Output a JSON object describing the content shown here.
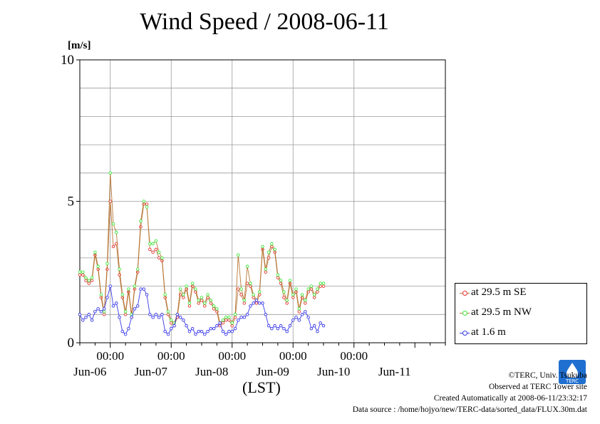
{
  "title": "Wind Speed / 2008-06-11",
  "unit_label": "[m/s]",
  "x_axis_label": "(LST)",
  "credits": {
    "copyright": "©TERC, Univ. Tsukuba",
    "observed": "Observed at TERC Tower site",
    "created": "Created Automatically at 2008-06-11/23:32:17",
    "source": "Data source : /home/hojyo/new/TERC-data/sorted_data/FLUX.30m.dat"
  },
  "logo_text": "TERC",
  "colors": {
    "se": "#e83030",
    "nw": "#38e838",
    "low": "#3838e8",
    "link": "#b87838"
  },
  "chart_data": {
    "type": "line",
    "title": "Wind Speed / 2008-06-11",
    "ylabel": "[m/s]",
    "xlabel": "(LST)",
    "ylim": [
      0,
      10
    ],
    "yticks": [
      0,
      5,
      10
    ],
    "xlim_days": [
      5.5,
      11.5
    ],
    "time_tick_label": "00:00",
    "day_labels": [
      {
        "t": 5.667,
        "label": "Jun-06"
      },
      {
        "t": 6.667,
        "label": "Jun-07"
      },
      {
        "t": 7.667,
        "label": "Jun-08"
      },
      {
        "t": 8.667,
        "label": "Jun-09"
      },
      {
        "t": 9.667,
        "label": "Jun-10"
      },
      {
        "t": 10.667,
        "label": "Jun-11"
      }
    ],
    "midnights": [
      6,
      7,
      8,
      9,
      10
    ],
    "grid": true,
    "legend_position": "right",
    "series": [
      {
        "name": "at 29.5 m SE",
        "color": "#e83030",
        "points": [
          [
            5.5,
            2.4
          ],
          [
            5.55,
            2.4
          ],
          [
            5.6,
            2.2
          ],
          [
            5.65,
            2.1
          ],
          [
            5.7,
            2.2
          ],
          [
            5.75,
            3.1
          ],
          [
            5.8,
            2.6
          ],
          [
            5.85,
            1.6
          ],
          [
            5.9,
            1.0
          ],
          [
            5.95,
            2.6
          ],
          [
            6.0,
            5.0
          ],
          [
            6.05,
            3.4
          ],
          [
            6.1,
            3.5
          ],
          [
            6.15,
            2.4
          ],
          [
            6.2,
            1.6
          ],
          [
            6.25,
            1.0
          ],
          [
            6.3,
            1.8
          ],
          [
            6.35,
            0.9
          ],
          [
            6.4,
            1.9
          ],
          [
            6.45,
            2.5
          ],
          [
            6.5,
            4.1
          ],
          [
            6.55,
            4.9
          ],
          [
            6.6,
            4.9
          ],
          [
            6.65,
            3.3
          ],
          [
            6.7,
            3.2
          ],
          [
            6.75,
            3.3
          ],
          [
            6.8,
            3.0
          ],
          [
            6.85,
            2.9
          ],
          [
            6.9,
            1.6
          ],
          [
            6.95,
            1.0
          ],
          [
            7.0,
            0.7
          ],
          [
            7.05,
            0.6
          ],
          [
            7.1,
            0.9
          ],
          [
            7.15,
            1.7
          ],
          [
            7.2,
            1.6
          ],
          [
            7.25,
            1.9
          ],
          [
            7.3,
            1.3
          ],
          [
            7.35,
            2.0
          ],
          [
            7.4,
            1.8
          ],
          [
            7.45,
            1.4
          ],
          [
            7.5,
            1.5
          ],
          [
            7.55,
            1.3
          ],
          [
            7.6,
            1.6
          ],
          [
            7.65,
            1.4
          ],
          [
            7.7,
            1.2
          ],
          [
            7.75,
            1.1
          ],
          [
            7.8,
            0.6
          ],
          [
            7.85,
            0.7
          ],
          [
            7.9,
            0.8
          ],
          [
            7.95,
            0.8
          ],
          [
            8.0,
            0.6
          ],
          [
            8.05,
            0.9
          ],
          [
            8.1,
            1.9
          ],
          [
            8.15,
            1.7
          ],
          [
            8.2,
            1.4
          ],
          [
            8.25,
            2.1
          ],
          [
            8.3,
            2.0
          ],
          [
            8.35,
            1.6
          ],
          [
            8.4,
            1.4
          ],
          [
            8.45,
            1.7
          ],
          [
            8.5,
            3.3
          ],
          [
            8.55,
            2.5
          ],
          [
            8.6,
            3.0
          ],
          [
            8.65,
            3.4
          ],
          [
            8.7,
            3.2
          ],
          [
            8.75,
            2.3
          ],
          [
            8.8,
            2.1
          ],
          [
            8.85,
            1.6
          ],
          [
            8.9,
            1.4
          ],
          [
            8.95,
            2.1
          ],
          [
            9.0,
            1.6
          ],
          [
            9.05,
            1.8
          ],
          [
            9.1,
            1.1
          ],
          [
            9.15,
            1.6
          ],
          [
            9.2,
            1.4
          ],
          [
            9.25,
            1.8
          ],
          [
            9.3,
            1.9
          ],
          [
            9.35,
            1.6
          ],
          [
            9.4,
            1.8
          ],
          [
            9.45,
            2.0
          ],
          [
            9.5,
            2.0
          ]
        ]
      },
      {
        "name": "at 29.5 m NW",
        "color": "#38e838",
        "points": [
          [
            5.5,
            2.5
          ],
          [
            5.55,
            2.5
          ],
          [
            5.6,
            2.3
          ],
          [
            5.65,
            2.2
          ],
          [
            5.7,
            2.3
          ],
          [
            5.75,
            3.2
          ],
          [
            5.8,
            2.7
          ],
          [
            5.85,
            1.7
          ],
          [
            5.9,
            1.1
          ],
          [
            5.95,
            2.8
          ],
          [
            6.0,
            6.0
          ],
          [
            6.05,
            4.2
          ],
          [
            6.1,
            3.9
          ],
          [
            6.15,
            2.6
          ],
          [
            6.2,
            1.7
          ],
          [
            6.25,
            1.1
          ],
          [
            6.3,
            1.9
          ],
          [
            6.35,
            1.0
          ],
          [
            6.4,
            2.0
          ],
          [
            6.45,
            2.6
          ],
          [
            6.5,
            4.3
          ],
          [
            6.55,
            5.0
          ],
          [
            6.6,
            4.8
          ],
          [
            6.65,
            3.5
          ],
          [
            6.7,
            3.5
          ],
          [
            6.75,
            3.6
          ],
          [
            6.8,
            3.2
          ],
          [
            6.85,
            3.0
          ],
          [
            6.9,
            1.7
          ],
          [
            6.95,
            1.1
          ],
          [
            7.0,
            0.8
          ],
          [
            7.05,
            0.7
          ],
          [
            7.1,
            1.0
          ],
          [
            7.15,
            1.9
          ],
          [
            7.2,
            1.7
          ],
          [
            7.25,
            2.0
          ],
          [
            7.3,
            1.4
          ],
          [
            7.35,
            2.1
          ],
          [
            7.4,
            1.9
          ],
          [
            7.45,
            1.5
          ],
          [
            7.5,
            1.6
          ],
          [
            7.55,
            1.4
          ],
          [
            7.6,
            1.7
          ],
          [
            7.65,
            1.5
          ],
          [
            7.7,
            1.3
          ],
          [
            7.75,
            1.2
          ],
          [
            7.8,
            0.7
          ],
          [
            7.85,
            0.8
          ],
          [
            7.9,
            0.9
          ],
          [
            7.95,
            0.9
          ],
          [
            8.0,
            0.7
          ],
          [
            8.05,
            1.0
          ],
          [
            8.1,
            3.1
          ],
          [
            8.15,
            1.9
          ],
          [
            8.2,
            1.5
          ],
          [
            8.25,
            2.7
          ],
          [
            8.3,
            2.1
          ],
          [
            8.35,
            1.7
          ],
          [
            8.4,
            1.5
          ],
          [
            8.45,
            1.8
          ],
          [
            8.5,
            3.4
          ],
          [
            8.55,
            2.6
          ],
          [
            8.6,
            3.2
          ],
          [
            8.65,
            3.5
          ],
          [
            8.7,
            3.3
          ],
          [
            8.75,
            2.4
          ],
          [
            8.8,
            2.2
          ],
          [
            8.85,
            1.8
          ],
          [
            8.9,
            1.5
          ],
          [
            8.95,
            2.2
          ],
          [
            9.0,
            1.7
          ],
          [
            9.05,
            1.9
          ],
          [
            9.1,
            1.2
          ],
          [
            9.15,
            1.7
          ],
          [
            9.2,
            1.5
          ],
          [
            9.25,
            1.9
          ],
          [
            9.3,
            2.0
          ],
          [
            9.35,
            1.7
          ],
          [
            9.4,
            1.9
          ],
          [
            9.45,
            2.1
          ],
          [
            9.5,
            2.1
          ]
        ]
      },
      {
        "name": "at 1.6 m",
        "color": "#3838e8",
        "points": [
          [
            5.5,
            1.0
          ],
          [
            5.55,
            0.8
          ],
          [
            5.6,
            0.9
          ],
          [
            5.65,
            1.0
          ],
          [
            5.7,
            0.8
          ],
          [
            5.75,
            1.1
          ],
          [
            5.8,
            1.2
          ],
          [
            5.85,
            1.1
          ],
          [
            5.9,
            1.2
          ],
          [
            5.95,
            1.6
          ],
          [
            6.0,
            2.0
          ],
          [
            6.05,
            1.3
          ],
          [
            6.1,
            1.4
          ],
          [
            6.15,
            0.9
          ],
          [
            6.2,
            0.4
          ],
          [
            6.25,
            0.3
          ],
          [
            6.3,
            0.5
          ],
          [
            6.35,
            0.9
          ],
          [
            6.4,
            1.2
          ],
          [
            6.45,
            1.3
          ],
          [
            6.5,
            1.9
          ],
          [
            6.55,
            1.9
          ],
          [
            6.6,
            1.7
          ],
          [
            6.65,
            1.0
          ],
          [
            6.7,
            0.9
          ],
          [
            6.75,
            1.0
          ],
          [
            6.8,
            0.9
          ],
          [
            6.85,
            1.0
          ],
          [
            6.9,
            0.4
          ],
          [
            6.95,
            0.3
          ],
          [
            7.0,
            0.5
          ],
          [
            7.05,
            0.6
          ],
          [
            7.1,
            1.0
          ],
          [
            7.15,
            0.9
          ],
          [
            7.2,
            0.8
          ],
          [
            7.25,
            0.6
          ],
          [
            7.3,
            0.4
          ],
          [
            7.35,
            0.5
          ],
          [
            7.4,
            0.3
          ],
          [
            7.45,
            0.4
          ],
          [
            7.5,
            0.4
          ],
          [
            7.55,
            0.3
          ],
          [
            7.6,
            0.4
          ],
          [
            7.65,
            0.5
          ],
          [
            7.7,
            0.5
          ],
          [
            7.75,
            0.6
          ],
          [
            7.8,
            0.7
          ],
          [
            7.85,
            0.4
          ],
          [
            7.9,
            0.3
          ],
          [
            7.95,
            0.4
          ],
          [
            8.0,
            0.4
          ],
          [
            8.05,
            0.5
          ],
          [
            8.1,
            0.8
          ],
          [
            8.15,
            0.9
          ],
          [
            8.2,
            0.9
          ],
          [
            8.25,
            1.0
          ],
          [
            8.3,
            1.3
          ],
          [
            8.35,
            1.4
          ],
          [
            8.4,
            1.5
          ],
          [
            8.45,
            1.4
          ],
          [
            8.5,
            1.4
          ],
          [
            8.55,
            1.0
          ],
          [
            8.6,
            0.6
          ],
          [
            8.65,
            0.5
          ],
          [
            8.7,
            0.6
          ],
          [
            8.75,
            0.5
          ],
          [
            8.8,
            0.6
          ],
          [
            8.85,
            0.5
          ],
          [
            8.9,
            0.4
          ],
          [
            8.95,
            0.6
          ],
          [
            9.0,
            0.8
          ],
          [
            9.05,
            0.9
          ],
          [
            9.1,
            0.8
          ],
          [
            9.15,
            1.0
          ],
          [
            9.2,
            1.1
          ],
          [
            9.25,
            0.9
          ],
          [
            9.3,
            0.5
          ],
          [
            9.35,
            0.6
          ],
          [
            9.4,
            0.4
          ],
          [
            9.45,
            0.7
          ],
          [
            9.5,
            0.6
          ]
        ]
      }
    ]
  }
}
